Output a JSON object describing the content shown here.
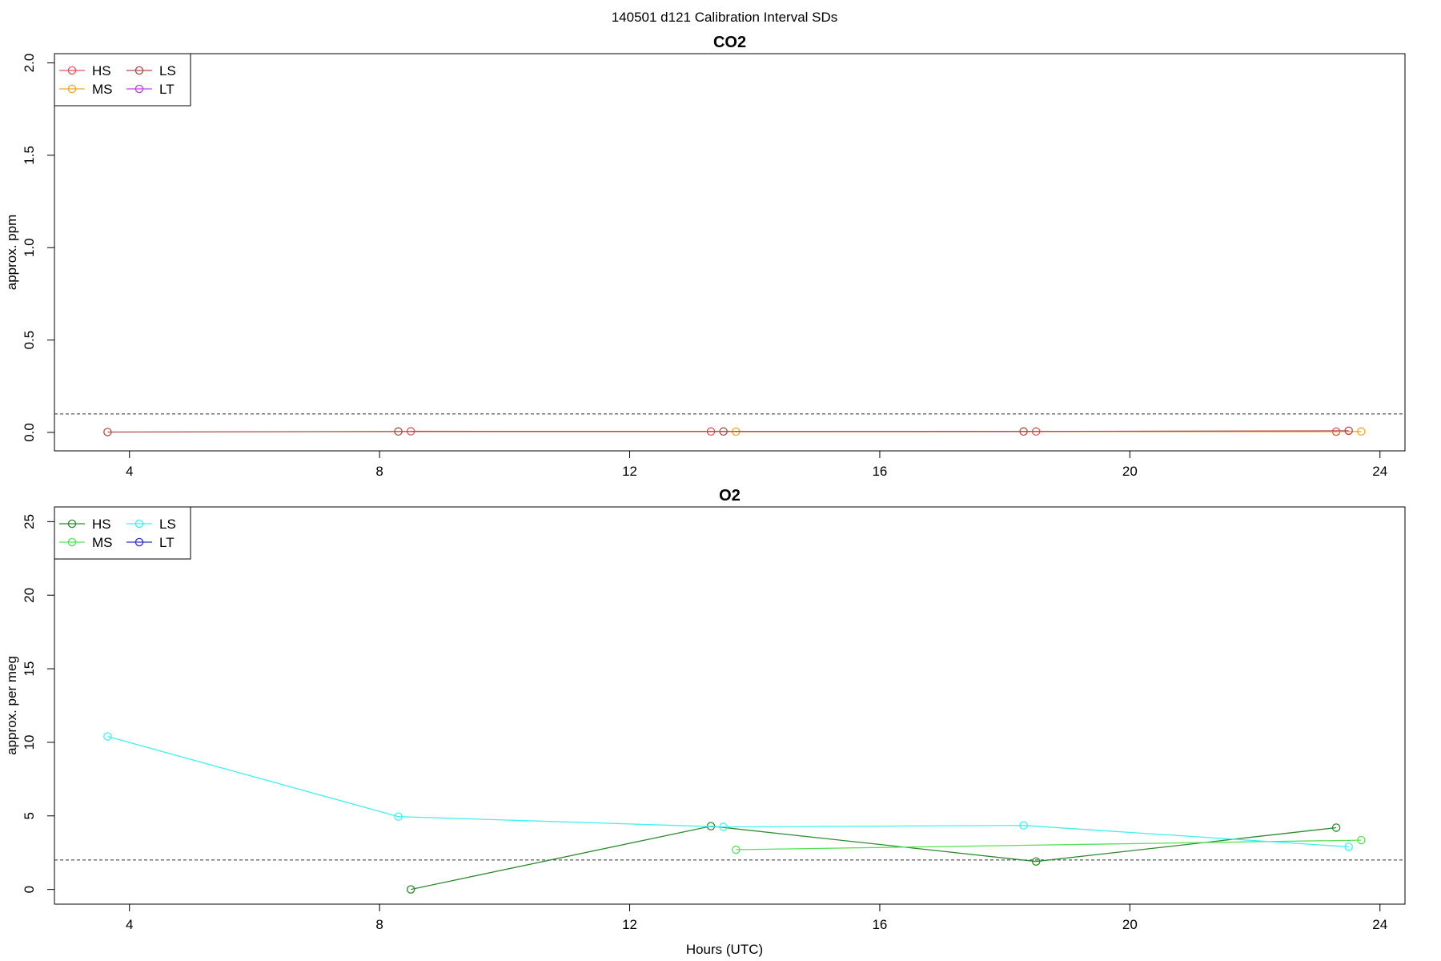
{
  "page_title": "140501   d121   Calibration Interval SDs",
  "xlabel": "Hours (UTC)",
  "chart_data": [
    {
      "type": "line",
      "title": "CO2",
      "ylabel": "approx. ppm",
      "xlim": [
        2.8,
        24.4
      ],
      "ylim": [
        -0.1,
        2.05
      ],
      "xticks": [
        4,
        8,
        12,
        16,
        20,
        24
      ],
      "yticks": [
        0.0,
        0.5,
        1.0,
        1.5,
        2.0
      ],
      "ytick_labels": [
        "0.0",
        "0.5",
        "1.0",
        "1.5",
        "2.0"
      ],
      "threshold": 0.1,
      "legend": {
        "placement": "top-left",
        "entries": [
          "HS",
          "MS",
          "LS",
          "LT"
        ]
      },
      "series": [
        {
          "name": "HS",
          "color": "#E8505A",
          "x": [
            8.5,
            13.3,
            18.5,
            23.3
          ],
          "y": [
            0.006,
            0.005,
            0.005,
            0.004
          ]
        },
        {
          "name": "MS",
          "color": "#F5A623",
          "x": [
            13.7,
            23.7
          ],
          "y": [
            0.004,
            0.005
          ]
        },
        {
          "name": "LS",
          "color": "#B04A48",
          "x": [
            3.65,
            8.3,
            13.5,
            18.3,
            23.5
          ],
          "y": [
            0.002,
            0.005,
            0.005,
            0.005,
            0.009
          ]
        },
        {
          "name": "LT",
          "color": "#C040E0",
          "x": [],
          "y": []
        }
      ]
    },
    {
      "type": "line",
      "title": "O2",
      "ylabel": "approx. per meg",
      "xlim": [
        2.8,
        24.4
      ],
      "ylim": [
        -1,
        26
      ],
      "xticks": [
        4,
        8,
        12,
        16,
        20,
        24
      ],
      "yticks": [
        0,
        5,
        10,
        15,
        20,
        25
      ],
      "ytick_labels": [
        "0",
        "5",
        "10",
        "15",
        "20",
        "25"
      ],
      "threshold": 2.0,
      "legend": {
        "placement": "top-left",
        "entries": [
          "HS",
          "MS",
          "LS",
          "LT"
        ]
      },
      "series": [
        {
          "name": "HS",
          "color": "#2E8B2E",
          "x": [
            8.5,
            13.3,
            18.5,
            23.3
          ],
          "y": [
            0.0,
            4.3,
            1.9,
            4.2
          ]
        },
        {
          "name": "MS",
          "color": "#55E055",
          "x": [
            13.7,
            23.7
          ],
          "y": [
            2.7,
            3.35
          ]
        },
        {
          "name": "LS",
          "color": "#40F0F0",
          "x": [
            3.65,
            8.3,
            13.5,
            18.3,
            23.5
          ],
          "y": [
            10.4,
            4.95,
            4.25,
            4.35,
            2.9
          ]
        },
        {
          "name": "LT",
          "color": "#3030C0",
          "x": [],
          "y": []
        }
      ]
    }
  ]
}
